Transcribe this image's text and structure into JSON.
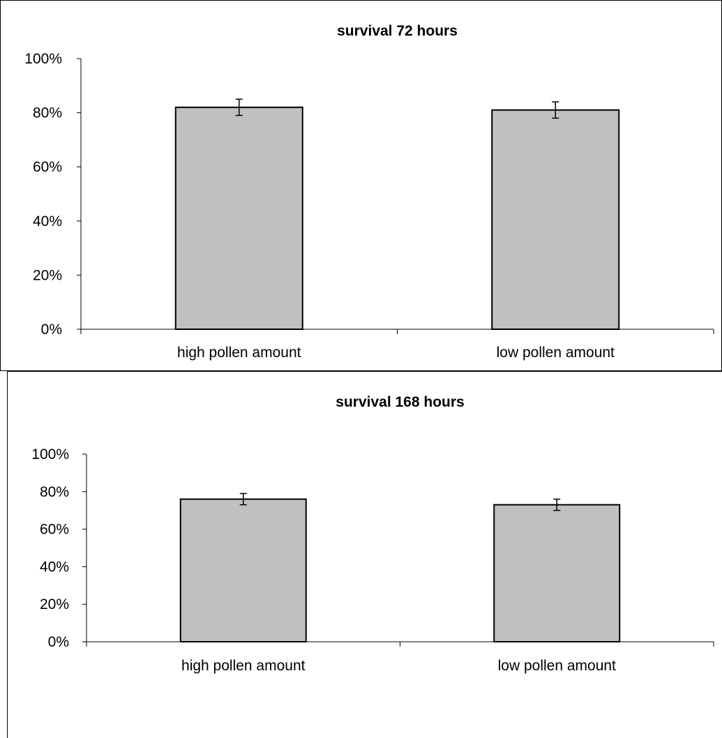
{
  "chart_data": [
    {
      "type": "bar",
      "title": "survival 72 hours",
      "xlabel": "",
      "ylabel": "",
      "categories": [
        "high pollen amount",
        "low pollen amount"
      ],
      "values": [
        0.82,
        0.81
      ],
      "error": [
        0.03,
        0.03
      ],
      "ylim": [
        0,
        1
      ],
      "yticks": [
        0,
        0.2,
        0.4,
        0.6,
        0.8,
        1.0
      ],
      "ytick_labels": [
        "0%",
        "20%",
        "40%",
        "60%",
        "80%",
        "100%"
      ],
      "grid": false,
      "legend": "none",
      "bar_color": "#c0c0c0"
    },
    {
      "type": "bar",
      "title": "survival 168 hours",
      "xlabel": "",
      "ylabel": "",
      "categories": [
        "high pollen amount",
        "low pollen amount"
      ],
      "values": [
        0.76,
        0.73
      ],
      "error": [
        0.03,
        0.03
      ],
      "ylim": [
        0,
        1
      ],
      "yticks": [
        0,
        0.2,
        0.4,
        0.6,
        0.8,
        1.0
      ],
      "ytick_labels": [
        "0%",
        "20%",
        "40%",
        "60%",
        "80%",
        "100%"
      ],
      "grid": false,
      "legend": "none",
      "bar_color": "#c0c0c0"
    }
  ]
}
